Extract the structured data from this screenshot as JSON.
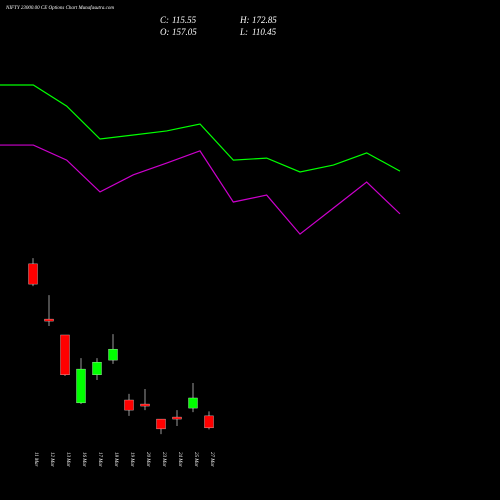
{
  "header": {
    "title": "NIFTY 23000.00 CE Options Chart Munafasutra.com",
    "c_label": "C:",
    "c": "115.55",
    "o_label": "O:",
    "o": "157.05",
    "h_label": "H:",
    "h": "172.85",
    "l_label": "L:",
    "l": "110.45"
  },
  "chart_data": [
    {
      "type": "candlestick",
      "categories": [
        "11 Mar",
        "12 Mar",
        "13 Mar",
        "16 Mar",
        "17 Mar",
        "18 Mar",
        "19 Mar",
        "20 Mar",
        "23 Mar",
        "24 Mar",
        "25 Mar",
        "27 Mar"
      ],
      "open": [
        683,
        492,
        437,
        202,
        299,
        350,
        212,
        198,
        146,
        153,
        184,
        157.05
      ],
      "high": [
        703,
        575,
        437,
        357,
        357,
        440,
        233,
        250,
        146,
        177,
        271,
        172.85
      ],
      "low": [
        606,
        468,
        295,
        198,
        281,
        337,
        157,
        177,
        94,
        122,
        170,
        110.45
      ],
      "close": [
        613,
        485,
        299,
        319,
        343,
        388,
        177,
        191,
        112,
        146,
        219,
        115.55
      ],
      "up_color": "#00ff00",
      "down_color": "#ff0000",
      "ylim": [
        -134,
        1596
      ]
    },
    {
      "type": "line",
      "series": [
        {
          "color": "#00ff00",
          "values": [
            1302,
            1302,
            1229,
            1115,
            1129,
            1143,
            1167,
            1042,
            1049,
            1001,
            1025,
            1067,
            1004
          ]
        },
        {
          "color": "#cc00cc",
          "values": [
            1094,
            1094,
            1042,
            932,
            991,
            1032,
            1074,
            897,
            921,
            786,
            876,
            966,
            856
          ]
        }
      ],
      "ylim": [
        -134,
        1596
      ]
    }
  ]
}
